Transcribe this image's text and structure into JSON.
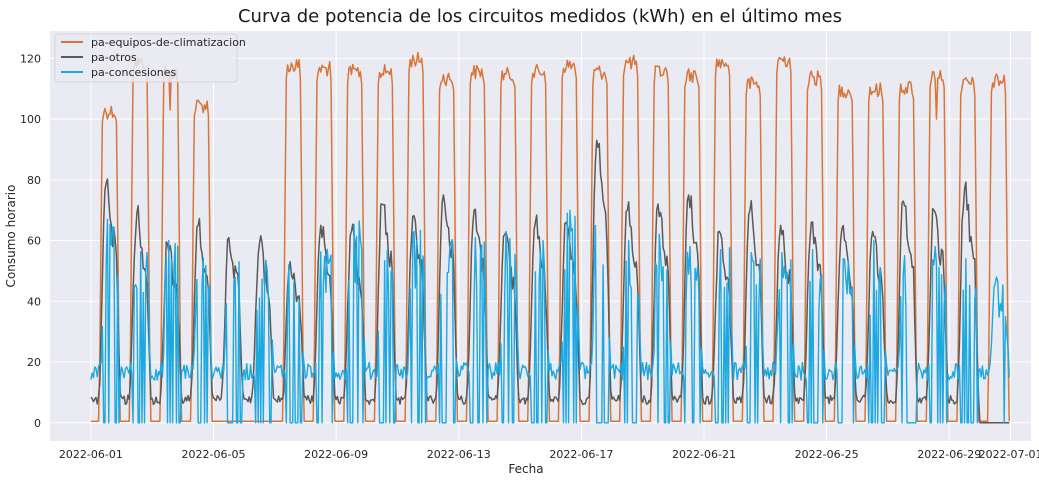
{
  "chart_data": {
    "type": "line",
    "title": "Curva de potencia de los circuitos medidos (kWh) en el último mes",
    "xlabel": "Fecha",
    "ylabel": "Consumo horario",
    "x_range": [
      "2022-05-30T16:00",
      "2022-07-01T16:00"
    ],
    "data_range": [
      "2022-06-01T00:00",
      "2022-06-30T23:00"
    ],
    "ylim": [
      -6,
      129
    ],
    "x_ticks": [
      "2022-06-01",
      "2022-06-05",
      "2022-06-09",
      "2022-06-13",
      "2022-06-17",
      "2022-06-21",
      "2022-06-25",
      "2022-06-29",
      "2022-07-01"
    ],
    "y_ticks": [
      0,
      20,
      40,
      60,
      80,
      100,
      120
    ],
    "grid": true,
    "background": "#eaeaf2",
    "legend_position": "top-left",
    "series": [
      {
        "name": "pa-equipos-de-climatizacion",
        "color": "#d8763a",
        "daily_peaks": [
          105,
          121,
          118,
          107,
          0,
          0,
          120,
          119,
          118,
          118,
          122,
          116,
          118,
          117,
          118,
          120,
          118,
          121,
          118,
          117,
          121,
          114,
          122,
          116,
          112,
          112,
          113,
          117,
          114,
          115
        ],
        "daily_dips": [
          null,
          null,
          103,
          null,
          null,
          null,
          null,
          null,
          null,
          null,
          null,
          null,
          null,
          null,
          null,
          null,
          null,
          null,
          null,
          null,
          null,
          null,
          null,
          null,
          null,
          null,
          null,
          100,
          null,
          null
        ],
        "night_level": 0.5
      },
      {
        "name": "pa-otros",
        "color": "#5a5a5a",
        "daily_peaks": [
          79,
          69,
          59,
          65,
          61,
          59,
          53,
          65,
          63,
          72,
          68,
          75,
          70,
          62,
          66,
          66,
          93,
          70,
          72,
          75,
          63,
          70,
          65,
          66,
          64,
          63,
          73,
          70,
          77,
          0
        ],
        "night_level": 6
      },
      {
        "name": "pa-concesiones",
        "color": "#1ca8e0",
        "daily_peaks": [
          67,
          63,
          60,
          55,
          57,
          56,
          57,
          60,
          65,
          68,
          63,
          63,
          61,
          63,
          62,
          69,
          68,
          60,
          62,
          58,
          57,
          56,
          56,
          57,
          54,
          60,
          55,
          58,
          54,
          48
        ],
        "night_level": 17
      }
    ]
  }
}
